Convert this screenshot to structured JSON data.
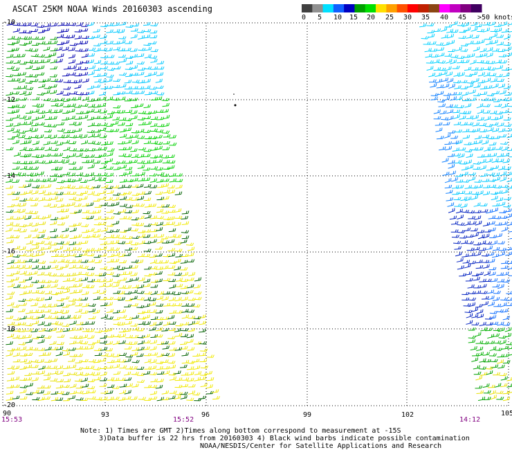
{
  "title": "ASCAT 25KM NOAA Winds 20160303 ascending",
  "legend": {
    "colors": [
      "#404040",
      "#909090",
      "#00e0ff",
      "#1060ff",
      "#0000c0",
      "#00a000",
      "#00e000",
      "#ffe000",
      "#ffa000",
      "#ff5000",
      "#ff0000",
      "#c02000",
      "#8b4513",
      "#ff00ff",
      "#c000c0",
      "#800080",
      "#400060"
    ],
    "labels": [
      "0",
      "5",
      "10",
      "15",
      "20",
      "25",
      "30",
      "35",
      "40",
      "45",
      ">50 knots"
    ]
  },
  "axes": {
    "lat_labels": [
      "-10",
      "-12",
      "-14",
      "-16",
      "-18",
      "-20"
    ],
    "lon_labels": [
      "90",
      "93",
      "96",
      "99",
      "102",
      "105"
    ]
  },
  "times": [
    "15:53",
    "15:52",
    "14:12"
  ],
  "notes": [
    "Note: 1) Times are GMT 2)Times along bottom correspond to measurement at -15S",
    "3)Data buffer is 22 hrs from 20160303 4) Black wind barbs indicate possible contamination",
    "NOAA/NESDIS/Center for Satellite Applications and Research"
  ]
}
